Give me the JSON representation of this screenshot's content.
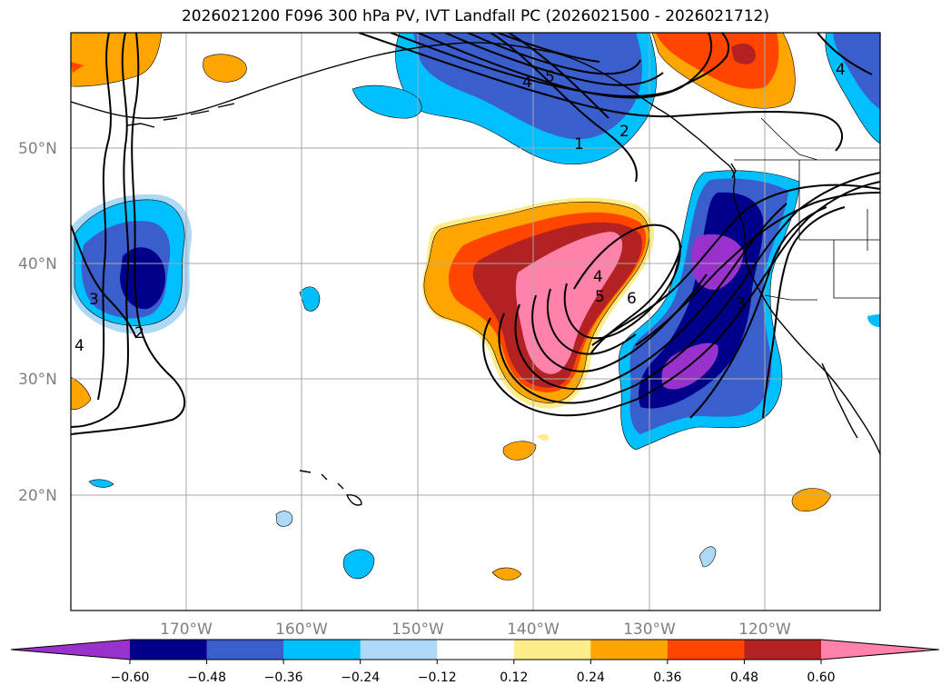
{
  "title": "2026021200 F096 300 hPa PV, IVT Landfall PC (2026021500 - 2026021712)",
  "lat_labels": [
    "50°N",
    "40°N",
    "30°N",
    "20°N"
  ],
  "lon_labels": [
    "170°W",
    "160°W",
    "150°W",
    "140°W",
    "130°W",
    "120°W"
  ],
  "colorbar": {
    "colors": [
      "#9932cc",
      "#00008b",
      "#3a5fcd",
      "#00bfff",
      "#add8f6",
      "#ffffff",
      "#ffec8b",
      "#ffa500",
      "#ff4500",
      "#b22222",
      "#ff82ab"
    ],
    "tick_labels": [
      "−0.60",
      "−0.48",
      "−0.36",
      "−0.24",
      "−0.12",
      "0.12",
      "0.24",
      "0.36",
      "0.48",
      "0.60"
    ]
  },
  "contour_labels": [
    "5",
    "4",
    "1",
    "2",
    "4",
    "5",
    "6",
    "3",
    "2",
    "3",
    "4",
    "4"
  ]
}
